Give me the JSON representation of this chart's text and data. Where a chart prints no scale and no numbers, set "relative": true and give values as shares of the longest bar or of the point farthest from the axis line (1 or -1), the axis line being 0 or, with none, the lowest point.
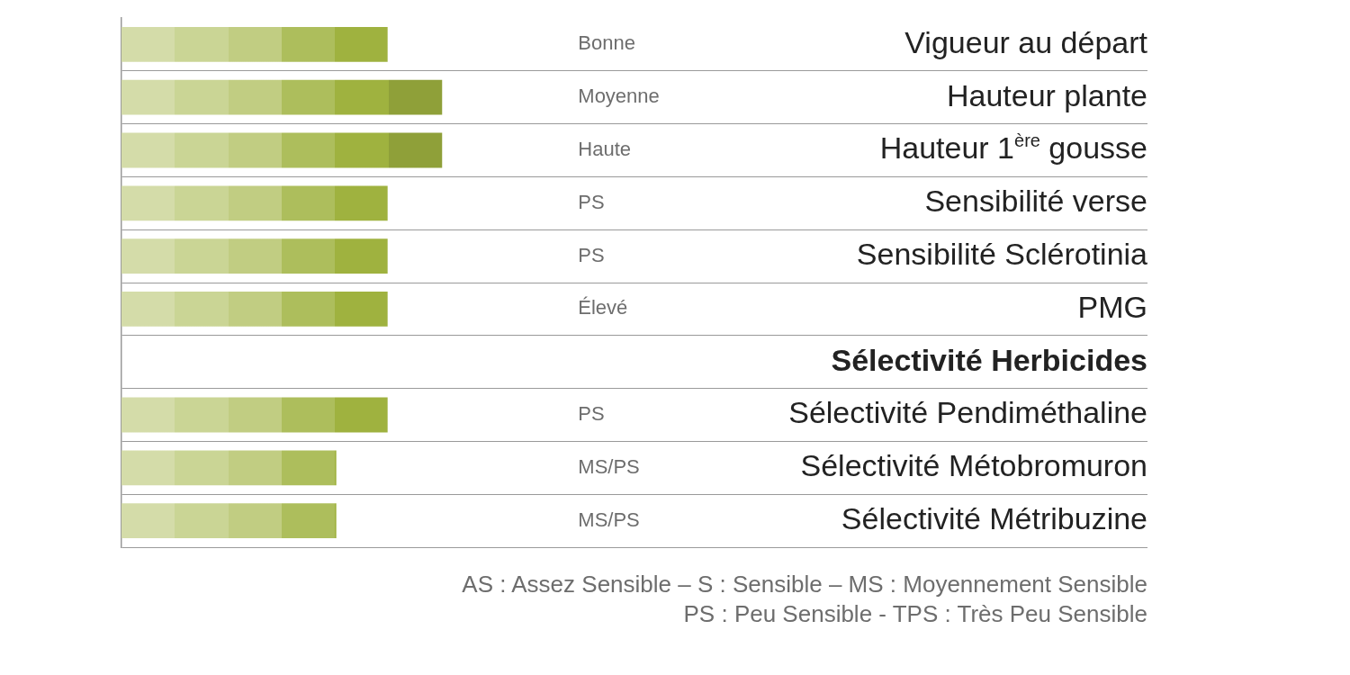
{
  "chart_data": {
    "type": "bar",
    "orientation": "horizontal",
    "relative": true,
    "grid": "y",
    "categories": [
      "Vigueur au départ",
      "Hauteur plante",
      "Hauteur 1$^{ère}$ gousse",
      "Sensibilité verse",
      "Sensibilité Sclérotinia",
      "PMG",
      "Sélectivité Herbicides",
      "Sélectivité Pendiméthaline",
      "Sélectivité Métobromuron",
      "Sélectivité Métribuzine"
    ],
    "series": [
      {
        "color": "#9fb23f",
        "values": [
          0.83,
          1,
          1,
          0.83,
          0.83,
          0.83,
          null,
          0.83,
          0.67,
          0.67
        ]
      }
    ],
    "annotations": [
      "Bonne",
      "Moyenne",
      "Haute",
      "PS",
      "PS",
      "Élevé",
      "PS",
      "MS/PS",
      "MS/PS",
      "AS : Assez Sensible –  S : Sensible – MS : Moyennement Sensible",
      "PS : Peu Sensible - TPS : Très Peu Sensible"
    ]
  }
}
